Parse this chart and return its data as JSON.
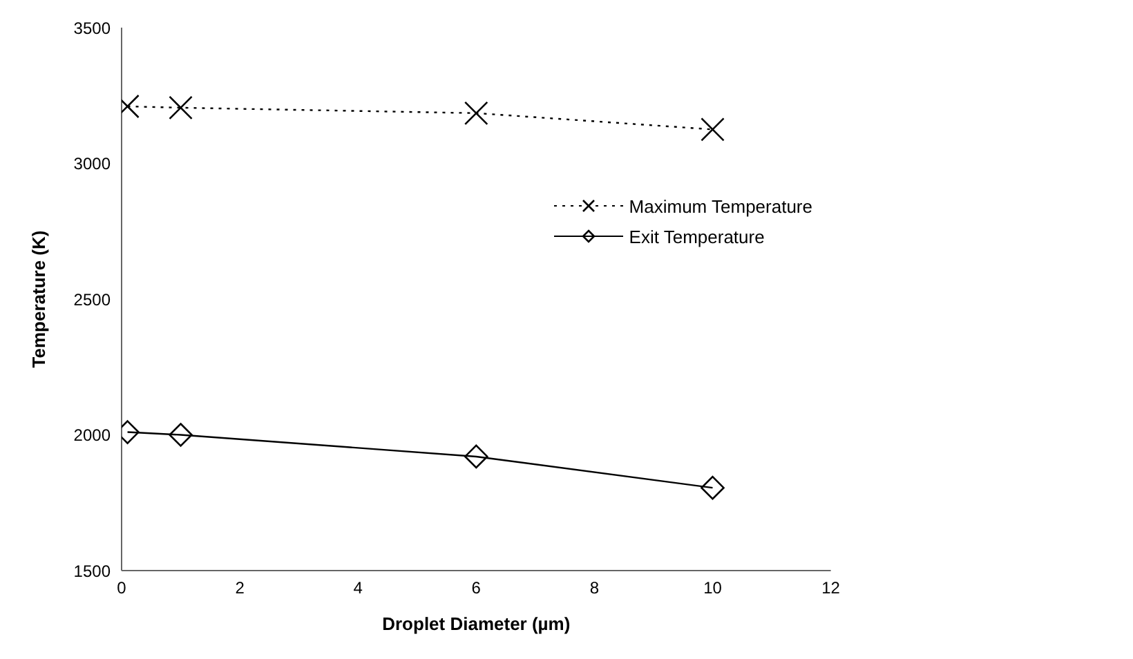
{
  "chart_data": {
    "type": "line",
    "xlabel": "Droplet Diameter (µm)",
    "ylabel": "Temperature (K)",
    "xlim": [
      0,
      12
    ],
    "xticks": [
      0,
      2,
      4,
      6,
      8,
      10,
      12
    ],
    "ylim": [
      1500,
      3500
    ],
    "yticks": [
      1500,
      2000,
      2500,
      3000,
      3500
    ],
    "grid": false,
    "legend": "top right",
    "series": [
      {
        "name": "Maximum  Temperature",
        "color": "#000000",
        "x": [
          0.1,
          1,
          6,
          10
        ],
        "values": [
          3210,
          3205,
          3185,
          3125
        ],
        "marker": "cross",
        "line_style": "dotted"
      },
      {
        "name": "Exit Temperature",
        "color": "#000000",
        "x": [
          0.1,
          1,
          6,
          10
        ],
        "values": [
          2010,
          2000,
          1920,
          1805
        ],
        "marker": "diamond",
        "line_style": "solid"
      }
    ]
  }
}
